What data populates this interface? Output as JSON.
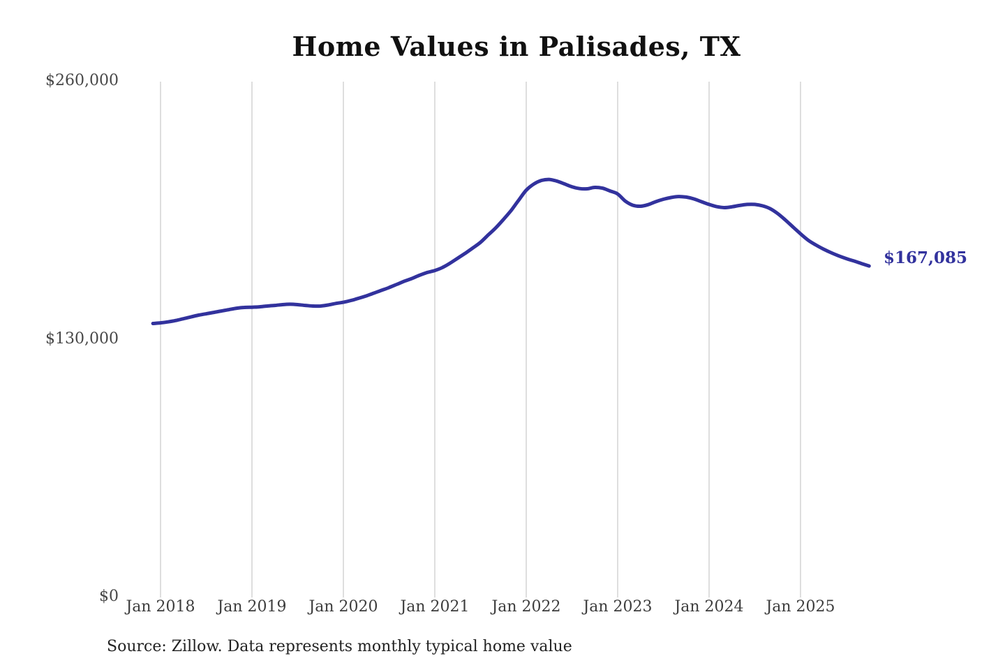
{
  "chart_data": {
    "type": "line",
    "title": "Home Values in Palisades, TX",
    "location": "Palisades, TX",
    "legend": "none",
    "grid": "vertical-only",
    "y_axis": {
      "ticks": [
        "$260,000",
        "$130,000",
        "$0"
      ],
      "tick_values": [
        260000,
        130000,
        0
      ],
      "range": [
        0,
        260000
      ]
    },
    "x_axis": {
      "ticks": [
        "Jan 2018",
        "Jan 2019",
        "Jan 2020",
        "Jan 2021",
        "Jan 2022",
        "Jan 2023",
        "Jan 2024",
        "Jan 2025"
      ]
    },
    "end_label": "$167,085",
    "current_value": 167085,
    "series": [
      {
        "name": "Monthly typical home value",
        "color": "#32329d",
        "dates": [
          "2017-12",
          "2018-01",
          "2018-02",
          "2018-03",
          "2018-04",
          "2018-05",
          "2018-06",
          "2018-07",
          "2018-08",
          "2018-09",
          "2018-10",
          "2018-11",
          "2018-12",
          "2019-01",
          "2019-02",
          "2019-03",
          "2019-04",
          "2019-05",
          "2019-06",
          "2019-07",
          "2019-08",
          "2019-09",
          "2019-10",
          "2019-11",
          "2019-12",
          "2020-01",
          "2020-02",
          "2020-03",
          "2020-04",
          "2020-05",
          "2020-06",
          "2020-07",
          "2020-08",
          "2020-09",
          "2020-10",
          "2020-11",
          "2020-12",
          "2021-01",
          "2021-02",
          "2021-03",
          "2021-04",
          "2021-05",
          "2021-06",
          "2021-07",
          "2021-08",
          "2021-09",
          "2021-10",
          "2021-11",
          "2021-12",
          "2022-01",
          "2022-02",
          "2022-03",
          "2022-04",
          "2022-05",
          "2022-06",
          "2022-07",
          "2022-08",
          "2022-09",
          "2022-10",
          "2022-11",
          "2022-12",
          "2023-01",
          "2023-02",
          "2023-03",
          "2023-04",
          "2023-05",
          "2023-06",
          "2023-07",
          "2023-08",
          "2023-09",
          "2023-10",
          "2023-11",
          "2023-12",
          "2024-01",
          "2024-02",
          "2024-03",
          "2024-04",
          "2024-05",
          "2024-06",
          "2024-07",
          "2024-08",
          "2024-09",
          "2024-10",
          "2024-11",
          "2024-12",
          "2025-01",
          "2025-02",
          "2025-03",
          "2025-04",
          "2025-05",
          "2025-06",
          "2025-07",
          "2025-08",
          "2025-09",
          "2025-10"
        ],
        "values": [
          138100,
          138400,
          138900,
          139600,
          140500,
          141400,
          142300,
          143000,
          143700,
          144400,
          145100,
          145800,
          146200,
          146300,
          146500,
          146900,
          147200,
          147600,
          147800,
          147600,
          147200,
          146900,
          146900,
          147400,
          148200,
          148800,
          149700,
          150800,
          152000,
          153400,
          154800,
          156200,
          157800,
          159400,
          160800,
          162400,
          163800,
          164800,
          166300,
          168500,
          171000,
          173500,
          176200,
          179000,
          182700,
          186300,
          190500,
          195000,
          200200,
          205300,
          208400,
          210200,
          210700,
          209900,
          208500,
          207000,
          206100,
          206000,
          206700,
          206300,
          204900,
          203400,
          199800,
          197700,
          197200,
          198000,
          199500,
          200700,
          201600,
          202100,
          201800,
          200900,
          199500,
          198100,
          197000,
          196500,
          196900,
          197600,
          198100,
          198100,
          197400,
          196000,
          193500,
          190300,
          186800,
          183300,
          180100,
          177700,
          175600,
          173800,
          172200,
          170800,
          169600,
          168300,
          167085
        ]
      }
    ]
  },
  "footer": {
    "source": "Source: Zillow. Data represents monthly typical home value"
  },
  "colors": {
    "line": "#32329d",
    "end_label": "#32329d",
    "title": "#111111",
    "axis_text": "#3d3d3d",
    "grid": "#cccccc",
    "background": "#ffffff"
  }
}
